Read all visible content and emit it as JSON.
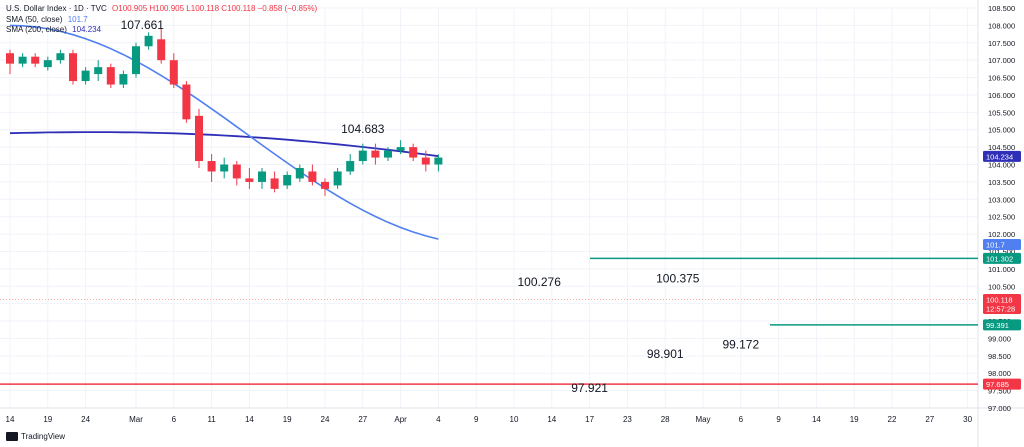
{
  "legend": {
    "title": "U.S. Dollar Index · 1D · TVC",
    "ohlc": "O100.905 H100.905 L100.118 C100.118 −0.858 (−0.85%)",
    "sma50_label": "SMA (50, close)",
    "sma50_value": "101.7",
    "sma200_label": "SMA (200, close)",
    "sma200_value": "104.234"
  },
  "brand": {
    "name": "TradingView"
  },
  "colors": {
    "up": "#089981",
    "down": "#f23645",
    "sma50": "#4f7ff0",
    "sma200": "#2f2fb8",
    "support": "#f23645",
    "level": "#089981"
  },
  "chart_data": {
    "type": "candlestick",
    "title": "U.S. Dollar Index · 1D · TVC",
    "ylim": [
      97.0,
      108.5
    ],
    "y_ticks": [
      "108.500",
      "108.000",
      "107.500",
      "107.000",
      "106.500",
      "106.000",
      "105.500",
      "105.000",
      "104.500",
      "104.000",
      "103.500",
      "103.000",
      "102.500",
      "102.000",
      "101.500",
      "101.000",
      "100.500",
      "100.000",
      "99.500",
      "99.000",
      "98.500",
      "98.000",
      "97.500",
      "97.000"
    ],
    "x_ticks": [
      {
        "label": "14",
        "i": 0
      },
      {
        "label": "19",
        "i": 3
      },
      {
        "label": "24",
        "i": 6
      },
      {
        "label": "Mar",
        "i": 10
      },
      {
        "label": "6",
        "i": 13
      },
      {
        "label": "11",
        "i": 16
      },
      {
        "label": "14",
        "i": 19
      },
      {
        "label": "19",
        "i": 22
      },
      {
        "label": "24",
        "i": 25
      },
      {
        "label": "27",
        "i": 28
      },
      {
        "label": "Apr",
        "i": 31
      },
      {
        "label": "4",
        "i": 34
      },
      {
        "label": "9",
        "i": 37
      },
      {
        "label": "10",
        "i": 40
      },
      {
        "label": "14",
        "i": 43
      },
      {
        "label": "17",
        "i": 46
      },
      {
        "label": "23",
        "i": 49
      },
      {
        "label": "28",
        "i": 52
      },
      {
        "label": "May",
        "i": 55
      },
      {
        "label": "6",
        "i": 58
      },
      {
        "label": "9",
        "i": 61
      },
      {
        "label": "14",
        "i": 64
      },
      {
        "label": "19",
        "i": 67
      },
      {
        "label": "22",
        "i": 70
      },
      {
        "label": "27",
        "i": 73
      },
      {
        "label": "30",
        "i": 76
      }
    ],
    "candles": [
      [
        107.2,
        106.9,
        107.3,
        106.6
      ],
      [
        106.9,
        107.1,
        107.2,
        106.8
      ],
      [
        107.1,
        106.9,
        107.2,
        106.8
      ],
      [
        106.8,
        107.0,
        107.1,
        106.7
      ],
      [
        107.0,
        107.2,
        107.3,
        106.9
      ],
      [
        107.2,
        106.4,
        107.3,
        106.3
      ],
      [
        106.4,
        106.7,
        106.8,
        106.3
      ],
      [
        106.6,
        106.8,
        107.0,
        106.4
      ],
      [
        106.8,
        106.3,
        106.9,
        106.2
      ],
      [
        106.3,
        106.6,
        106.7,
        106.2
      ],
      [
        106.6,
        107.4,
        107.5,
        106.5
      ],
      [
        107.4,
        107.7,
        107.8,
        107.3
      ],
      [
        107.6,
        107.0,
        107.9,
        106.9
      ],
      [
        107.0,
        106.3,
        107.2,
        106.2
      ],
      [
        106.3,
        105.3,
        106.4,
        105.2
      ],
      [
        105.4,
        104.1,
        105.6,
        103.9
      ],
      [
        104.1,
        103.8,
        104.3,
        103.5
      ],
      [
        103.8,
        104.0,
        104.2,
        103.6
      ],
      [
        104.0,
        103.6,
        104.1,
        103.4
      ],
      [
        103.6,
        103.5,
        103.9,
        103.3
      ],
      [
        103.5,
        103.8,
        103.9,
        103.3
      ],
      [
        103.6,
        103.3,
        103.8,
        103.2
      ],
      [
        103.4,
        103.7,
        103.8,
        103.3
      ],
      [
        103.6,
        103.9,
        104.0,
        103.5
      ],
      [
        103.8,
        103.5,
        104.0,
        103.4
      ],
      [
        103.5,
        103.3,
        103.6,
        103.1
      ],
      [
        103.4,
        103.8,
        103.9,
        103.3
      ],
      [
        103.8,
        104.1,
        104.3,
        103.7
      ],
      [
        104.1,
        104.4,
        104.6,
        104.0
      ],
      [
        104.4,
        104.2,
        104.6,
        104.0
      ],
      [
        104.2,
        104.4,
        104.5,
        104.1
      ],
      [
        104.4,
        104.5,
        104.7,
        104.3
      ],
      [
        104.5,
        104.2,
        104.6,
        104.1
      ],
      [
        104.2,
        104.0,
        104.4,
        103.8
      ],
      [
        104.0,
        104.2,
        104.3,
        103.8
      ]
    ],
    "annotations": [
      {
        "text": "107.661",
        "price": 107.661
      },
      {
        "text": "104.683",
        "price": 104.683
      },
      {
        "text": "100.276",
        "price": 100.276
      },
      {
        "text": "100.375",
        "price": 100.375
      },
      {
        "text": "98.901",
        "price": 98.901
      },
      {
        "text": "99.172",
        "price": 99.172
      },
      {
        "text": "97.921",
        "price": 97.921
      }
    ],
    "sma200_label": "SMA (200, close)",
    "sma50_label": "SMA (50, close)",
    "hlines": [
      {
        "price": 101.302,
        "label": "101.302",
        "color": "#089981"
      },
      {
        "price": 99.391,
        "label": "99.391",
        "color": "#089981"
      },
      {
        "price": 97.685,
        "label": "97.685",
        "color": "#f23645"
      }
    ],
    "price_badges": [
      {
        "price": 104.234,
        "label": "104.234",
        "color": "#2f2fb8"
      },
      {
        "price": 101.7,
        "label": "101.7",
        "color": "#4f7ff0"
      },
      {
        "price": 101.302,
        "label": "101.302",
        "color": "#089981"
      },
      {
        "price": 100.118,
        "label": "100.118",
        "sublabel": "12:57:28",
        "color": "#f23645"
      },
      {
        "price": 99.391,
        "label": "99.391",
        "color": "#089981"
      },
      {
        "price": 97.685,
        "label": "97.685",
        "color": "#f23645"
      }
    ]
  }
}
